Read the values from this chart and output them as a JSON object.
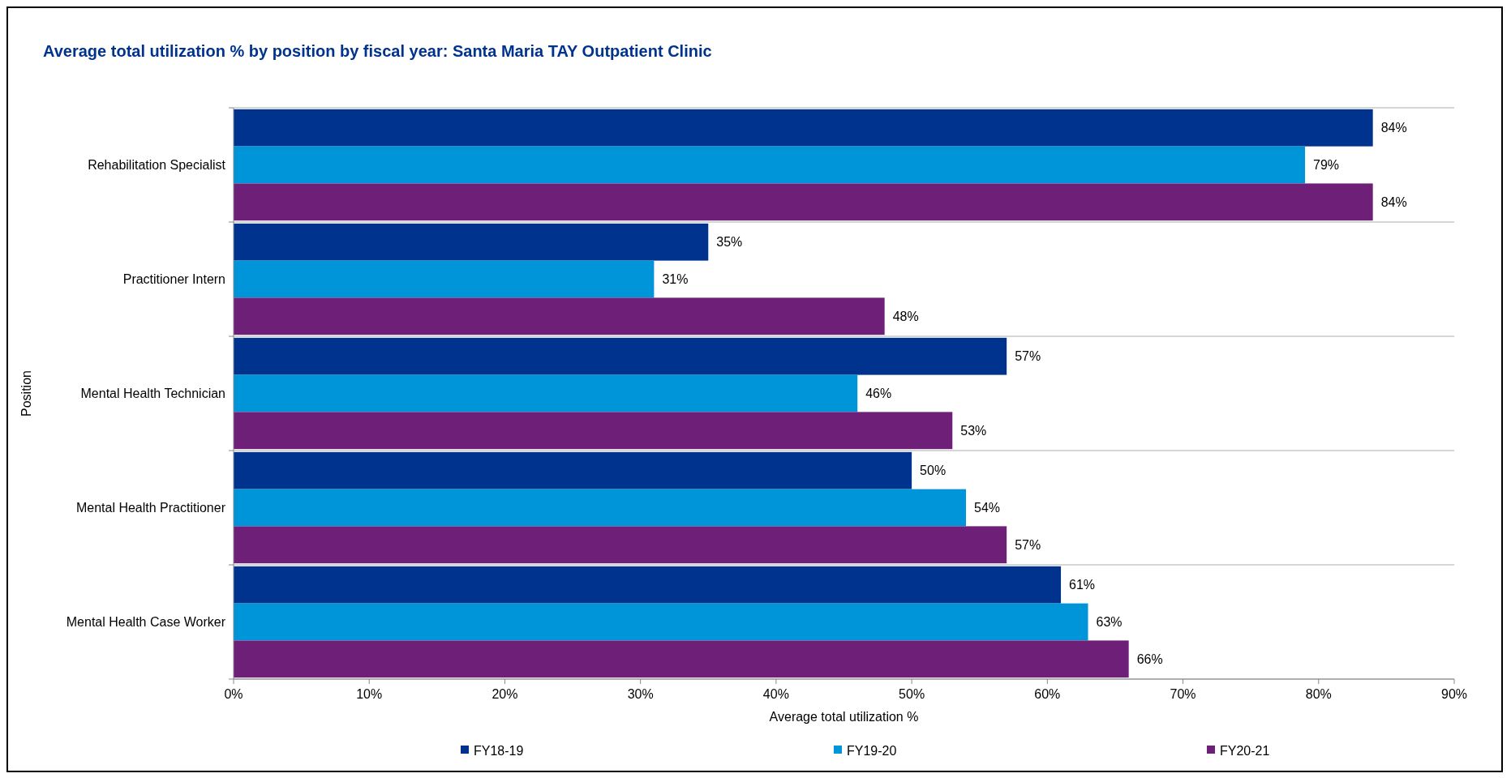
{
  "chart_data": {
    "type": "bar",
    "orientation": "horizontal",
    "title": "Average total utilization % by position by fiscal year: Santa Maria TAY Outpatient Clinic",
    "xlabel": "Average total utilization %",
    "ylabel": "Position",
    "categories": [
      "Rehabilitation Specialist",
      "Practitioner Intern",
      "Mental Health Technician",
      "Mental Health Practitioner",
      "Mental Health Case Worker"
    ],
    "series": [
      {
        "name": "FY18-19",
        "color": "#00338d",
        "values": [
          84,
          35,
          57,
          50,
          61
        ],
        "value_labels": [
          "84%",
          "35%",
          "57%",
          "50%",
          "61%"
        ]
      },
      {
        "name": "FY19-20",
        "color": "#0095d9",
        "values": [
          79,
          31,
          46,
          54,
          63
        ],
        "value_labels": [
          "79%",
          "31%",
          "46%",
          "54%",
          "63%"
        ]
      },
      {
        "name": "FY20-21",
        "color": "#6e1f78",
        "values": [
          84,
          48,
          53,
          57,
          66
        ],
        "value_labels": [
          "84%",
          "48%",
          "53%",
          "57%",
          "66%"
        ]
      }
    ],
    "xlim": [
      0,
      90
    ],
    "xticks": [
      {
        "value": 0,
        "label": "0%"
      },
      {
        "value": 10,
        "label": "10%"
      },
      {
        "value": 20,
        "label": "20%"
      },
      {
        "value": 30,
        "label": "30%"
      },
      {
        "value": 40,
        "label": "40%"
      },
      {
        "value": 50,
        "label": "50%"
      },
      {
        "value": 60,
        "label": "60%"
      },
      {
        "value": 70,
        "label": "70%"
      },
      {
        "value": 80,
        "label": "80%"
      },
      {
        "value": 90,
        "label": "90%"
      }
    ],
    "grid": "y",
    "legend": "bottom"
  }
}
